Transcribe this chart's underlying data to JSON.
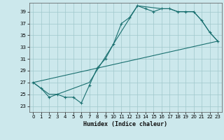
{
  "title": "",
  "xlabel": "Humidex (Indice chaleur)",
  "xlim": [
    -0.5,
    23.5
  ],
  "ylim": [
    22,
    40.5
  ],
  "yticks": [
    23,
    25,
    27,
    29,
    31,
    33,
    35,
    37,
    39
  ],
  "xticks": [
    0,
    1,
    2,
    3,
    4,
    5,
    6,
    7,
    8,
    9,
    10,
    11,
    12,
    13,
    14,
    15,
    16,
    17,
    18,
    19,
    20,
    21,
    22,
    23
  ],
  "bg_color": "#cce8ec",
  "grid_color": "#a0c8cc",
  "line_color": "#1a7070",
  "line1_x": [
    0,
    1,
    2,
    3,
    4,
    5,
    6,
    7,
    8,
    9,
    10,
    11,
    12,
    13,
    14,
    15,
    16,
    17,
    18,
    19,
    20,
    21,
    22,
    23
  ],
  "line1_y": [
    27,
    26,
    24.5,
    25,
    24.5,
    24.5,
    23.5,
    26.5,
    29.5,
    31,
    33.5,
    37,
    38,
    40,
    39.5,
    39,
    39.5,
    39.5,
    39,
    39,
    39,
    37.5,
    35.5,
    34
  ],
  "line2_x": [
    0,
    1,
    2,
    3,
    7,
    10,
    13,
    16,
    17,
    18,
    20,
    21,
    22,
    23
  ],
  "line2_y": [
    27,
    26,
    25,
    25,
    27,
    33.5,
    40,
    39.5,
    39.5,
    39,
    39,
    37.5,
    35.5,
    34
  ],
  "line3_x": [
    0,
    23
  ],
  "line3_y": [
    27,
    34
  ]
}
